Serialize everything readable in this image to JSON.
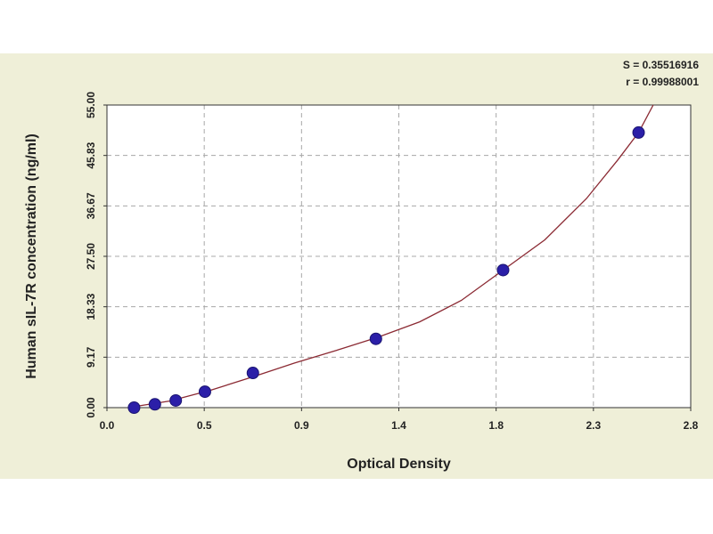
{
  "chart_data": {
    "type": "scatter",
    "title": "",
    "xlabel": "Optical Density",
    "ylabel": "Human sIL-7R concentration (ng/ml)",
    "xlim": [
      0.0,
      2.8
    ],
    "ylim": [
      0.0,
      55.0
    ],
    "x_tick_labels": [
      "0.0",
      "0.5",
      "0.9",
      "1.4",
      "1.8",
      "2.3",
      "2.8"
    ],
    "y_tick_labels": [
      "0.00",
      "9.17",
      "18.33",
      "27.50",
      "36.67",
      "45.83",
      "55.00"
    ],
    "grid": true,
    "stats": {
      "s_line": "S = 0.35516916",
      "r_line": "r = 0.99988001"
    },
    "points": [
      {
        "x": 0.13,
        "y": 0.0
      },
      {
        "x": 0.23,
        "y": 0.6
      },
      {
        "x": 0.33,
        "y": 1.3
      },
      {
        "x": 0.47,
        "y": 2.9
      },
      {
        "x": 0.7,
        "y": 6.3
      },
      {
        "x": 1.29,
        "y": 12.5
      },
      {
        "x": 1.9,
        "y": 25.0
      },
      {
        "x": 2.55,
        "y": 50.0
      }
    ],
    "curve": {
      "x": [
        0.1,
        0.3,
        0.5,
        0.7,
        0.9,
        1.1,
        1.3,
        1.5,
        1.7,
        1.9,
        2.1,
        2.3,
        2.45,
        2.55,
        2.62
      ],
      "y": [
        -0.2,
        1.2,
        3.2,
        5.6,
        8.1,
        10.4,
        12.8,
        15.6,
        19.5,
        25.0,
        30.5,
        38.0,
        45.0,
        50.0,
        55.0
      ]
    },
    "colors": {
      "background": "#efefd8",
      "plot_area": "#ffffff",
      "grid": "#a8a8a8",
      "marker": "#2b1fa8",
      "marker_edge": "#1a1470",
      "curve": "#8b2a33"
    }
  }
}
